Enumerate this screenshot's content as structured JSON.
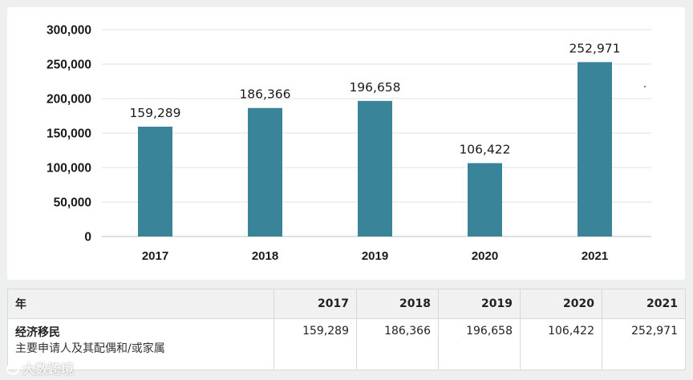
{
  "chart_data": {
    "type": "bar",
    "categories": [
      "2017",
      "2018",
      "2019",
      "2020",
      "2021"
    ],
    "values": [
      159289,
      186366,
      196658,
      106422,
      252971
    ],
    "value_labels": [
      "159,289",
      "186,366",
      "196,658",
      "106,422",
      "252,971"
    ],
    "y_ticks": [
      "0",
      "50,000",
      "100,000",
      "150,000",
      "200,000",
      "250,000",
      "300,000"
    ],
    "ylim": [
      0,
      300000
    ],
    "grid": true,
    "bar_color": "#3a8499",
    "title": "",
    "xlabel": "",
    "ylabel": ""
  },
  "table": {
    "header": [
      "年",
      "2017",
      "2018",
      "2019",
      "2020",
      "2021"
    ],
    "row": {
      "title": "经济移民",
      "subtitle": "主要申请人及其配偶和/或家属",
      "values": [
        "159,289",
        "186,366",
        "196,658",
        "106,422",
        "252,971"
      ]
    }
  },
  "watermark": {
    "text": "大数跨境"
  }
}
